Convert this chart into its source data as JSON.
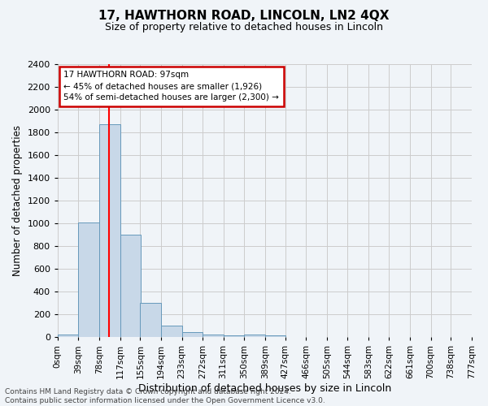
{
  "title": "17, HAWTHORN ROAD, LINCOLN, LN2 4QX",
  "subtitle": "Size of property relative to detached houses in Lincoln",
  "xlabel": "Distribution of detached houses by size in Lincoln",
  "ylabel": "Number of detached properties",
  "bin_labels": [
    "0sqm",
    "39sqm",
    "78sqm",
    "117sqm",
    "155sqm",
    "194sqm",
    "233sqm",
    "272sqm",
    "311sqm",
    "350sqm",
    "389sqm",
    "427sqm",
    "466sqm",
    "505sqm",
    "544sqm",
    "583sqm",
    "622sqm",
    "661sqm",
    "700sqm",
    "738sqm",
    "777sqm"
  ],
  "bin_edges": [
    0,
    39,
    78,
    117,
    155,
    194,
    233,
    272,
    311,
    350,
    389,
    427,
    466,
    505,
    544,
    583,
    622,
    661,
    700,
    738,
    777
  ],
  "bar_heights": [
    20,
    1010,
    1870,
    900,
    300,
    100,
    45,
    25,
    15,
    20,
    15,
    0,
    0,
    0,
    0,
    0,
    0,
    0,
    0,
    0
  ],
  "bar_color": "#c8d8e8",
  "bar_edge_color": "#6699bb",
  "grid_color": "#cccccc",
  "vline_x": 97,
  "vline_color": "red",
  "ylim": [
    0,
    2400
  ],
  "yticks": [
    0,
    200,
    400,
    600,
    800,
    1000,
    1200,
    1400,
    1600,
    1800,
    2000,
    2200,
    2400
  ],
  "annotation_title": "17 HAWTHORN ROAD: 97sqm",
  "annotation_line1": "← 45% of detached houses are smaller (1,926)",
  "annotation_line2": "54% of semi-detached houses are larger (2,300) →",
  "annotation_box_color": "#ffffff",
  "annotation_border_color": "#cc0000",
  "footer_line1": "Contains HM Land Registry data © Crown copyright and database right 2024.",
  "footer_line2": "Contains public sector information licensed under the Open Government Licence v3.0.",
  "background_color": "#f0f4f8",
  "plot_background_color": "#f0f4f8",
  "title_fontsize": 11,
  "subtitle_fontsize": 9
}
